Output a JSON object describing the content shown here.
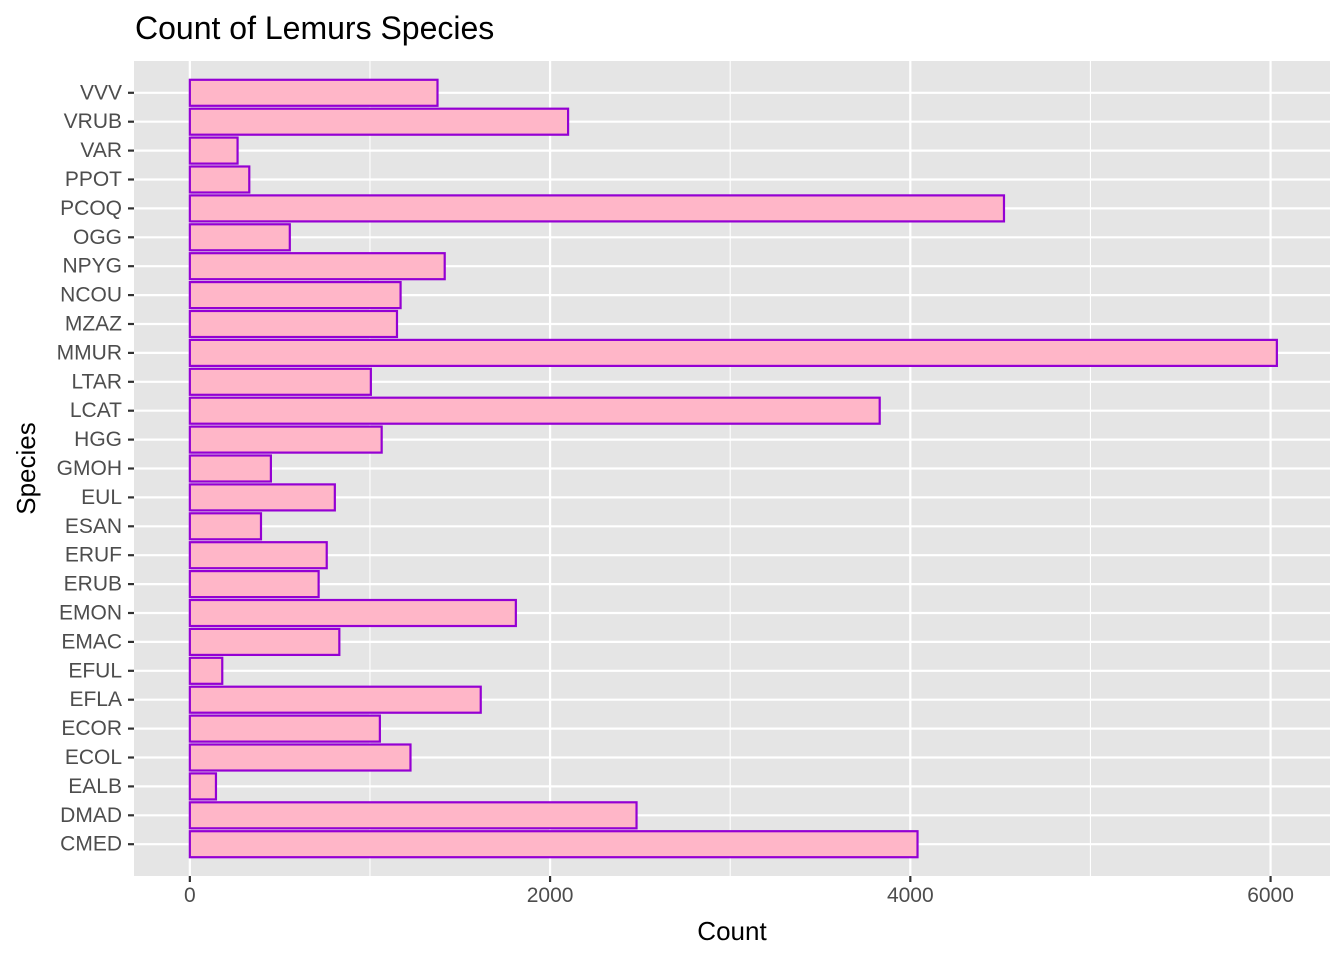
{
  "chart_data": {
    "type": "bar",
    "orientation": "horizontal",
    "title": "Count of Lemurs Species",
    "xlabel": "Count",
    "ylabel": "Species",
    "xlim": [
      -310,
      6330
    ],
    "xticks": [
      0,
      2000,
      4000,
      6000
    ],
    "xtick_labels": [
      "0",
      "2000",
      "4000",
      "6000"
    ],
    "grid": true,
    "bar_fill": "#FFB6C8",
    "bar_outline": "#9400D3",
    "panel_background": "#E5E5E5",
    "categories": [
      "CMED",
      "DMAD",
      "EALB",
      "ECOL",
      "ECOR",
      "EFLA",
      "EFUL",
      "EMAC",
      "EMON",
      "ERUB",
      "ERUF",
      "ESAN",
      "EUL",
      "GMOH",
      "HGG",
      "LCAT",
      "LTAR",
      "MMUR",
      "MZAZ",
      "NCOU",
      "NPYG",
      "OGG",
      "PCOQ",
      "PPOT",
      "VAR",
      "VRUB",
      "VVV"
    ],
    "values": [
      4040,
      2480,
      145,
      1225,
      1055,
      1615,
      180,
      830,
      1810,
      715,
      760,
      395,
      805,
      450,
      1065,
      3830,
      1005,
      6035,
      1150,
      1170,
      1415,
      555,
      4520,
      330,
      265,
      2100,
      1375
    ]
  }
}
